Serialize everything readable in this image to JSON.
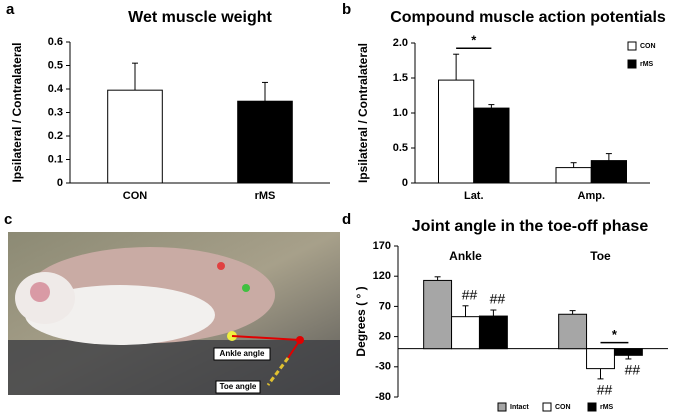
{
  "panel_labels": [
    "a",
    "b",
    "c",
    "d"
  ],
  "photo": {
    "labels": [
      "Ankle angle",
      "Toe angle"
    ]
  },
  "chart_data": [
    {
      "type": "bar",
      "title": "Wet muscle weight",
      "y_label": "Ipsilateral / Contralateral",
      "categories": [
        "CON",
        "rMS"
      ],
      "values": [
        0.395,
        0.348
      ],
      "errors": [
        0.115,
        0.08
      ],
      "colors": [
        "#ffffff",
        "#000000"
      ],
      "ylim": [
        0,
        0.6
      ],
      "yticks": [
        0,
        0.1,
        0.2,
        0.3,
        0.4,
        0.5,
        0.6
      ]
    },
    {
      "type": "bar",
      "title": "Compound muscle action potentials",
      "y_label": "Ipsilateral / Contralateral",
      "categories": [
        "Lat.",
        "Amp."
      ],
      "series": [
        {
          "name": "CON",
          "color": "#ffffff",
          "values": [
            1.47,
            0.22
          ],
          "errors": [
            0.37,
            0.07
          ]
        },
        {
          "name": "rMS",
          "color": "#000000",
          "values": [
            1.07,
            0.32
          ],
          "errors": [
            0.05,
            0.1
          ]
        }
      ],
      "legend": "upper right",
      "annotations": [
        {
          "text": "*",
          "category": 0,
          "series": [
            0,
            1
          ]
        }
      ],
      "ylim": [
        0,
        2
      ],
      "yticks": [
        0,
        0.5,
        {
          "value": 1,
          "label": "1.0"
        },
        1.5,
        {
          "value": 2,
          "label": "2.0"
        }
      ]
    },
    {
      "type": "bar",
      "title": "Joint angle in the toe-off phase",
      "y_label": "Degrees ( ° )",
      "categories": [
        "Ankle",
        "Toe"
      ],
      "category_label_position": "top",
      "series": [
        {
          "name": "Intact",
          "color": "#a6a6a6",
          "values": [
            113,
            57
          ],
          "errors": [
            6,
            6
          ]
        },
        {
          "name": "CON",
          "color": "#ffffff",
          "values": [
            53,
            -33
          ],
          "errors": [
            18,
            17
          ]
        },
        {
          "name": "rMS",
          "color": "#000000",
          "values": [
            54,
            -11
          ],
          "errors": [
            10,
            6
          ]
        }
      ],
      "legend": "bottom",
      "annotations": [
        {
          "text": "##",
          "category": 0,
          "series": [
            1
          ]
        },
        {
          "text": "##",
          "category": 0,
          "series": [
            2
          ]
        },
        {
          "text": "##",
          "category": 1,
          "series": [
            1
          ]
        },
        {
          "text": "##",
          "category": 1,
          "series": [
            2
          ]
        },
        {
          "text": "*",
          "category": 1,
          "series": [
            1,
            2
          ]
        }
      ],
      "ylim": [
        -80,
        170
      ],
      "yticks": [
        -80,
        -30,
        20,
        70,
        120,
        170
      ]
    }
  ]
}
